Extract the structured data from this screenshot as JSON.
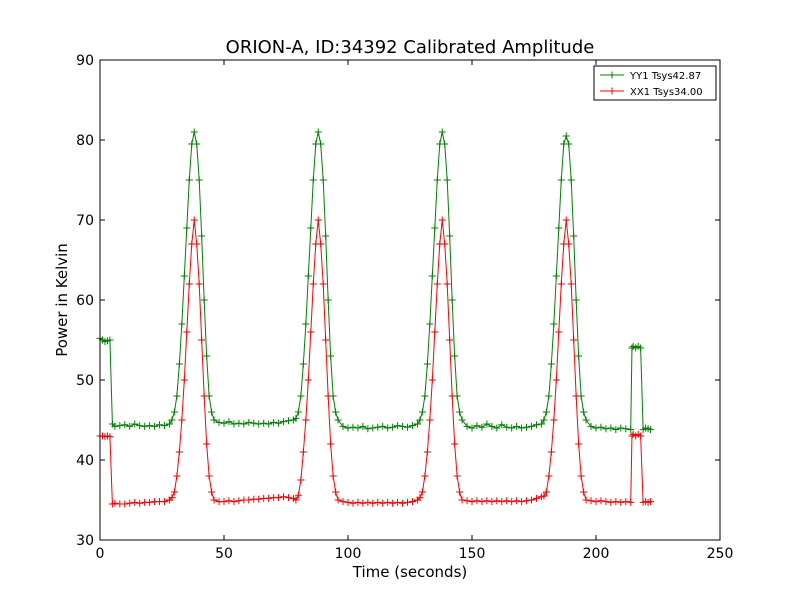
{
  "chart_data": {
    "type": "line",
    "title": "ORION-A, ID:34392 Calibrated Amplitude",
    "xlabel": "Time (seconds)",
    "ylabel": "Power in Kelvin",
    "xlim": [
      0,
      250
    ],
    "ylim": [
      30,
      90
    ],
    "xticks": [
      0,
      50,
      100,
      150,
      200,
      250
    ],
    "yticks": [
      30,
      40,
      50,
      60,
      70,
      80,
      90
    ],
    "grid": false,
    "legend_position": "top-right",
    "series": [
      {
        "name": "YY1 Tsys42.87",
        "color": "#008000",
        "marker": "+",
        "x": [
          0,
          1,
          2,
          3,
          4,
          5,
          6,
          8,
          10,
          12,
          14,
          16,
          18,
          20,
          22,
          24,
          26,
          28,
          29,
          30,
          31,
          32,
          33,
          34,
          35,
          36,
          37,
          38,
          39,
          40,
          41,
          42,
          43,
          44,
          45,
          46,
          48,
          50,
          52,
          54,
          56,
          58,
          60,
          62,
          64,
          66,
          68,
          70,
          72,
          74,
          76,
          78,
          79,
          80,
          81,
          82,
          83,
          84,
          85,
          86,
          87,
          88,
          89,
          90,
          91,
          92,
          93,
          94,
          95,
          96,
          98,
          100,
          102,
          104,
          106,
          108,
          110,
          112,
          114,
          116,
          118,
          120,
          122,
          124,
          126,
          128,
          129,
          130,
          131,
          132,
          133,
          134,
          135,
          136,
          137,
          138,
          139,
          140,
          141,
          142,
          143,
          144,
          145,
          146,
          148,
          150,
          152,
          154,
          156,
          158,
          160,
          162,
          164,
          166,
          168,
          170,
          172,
          174,
          176,
          178,
          179,
          180,
          181,
          182,
          183,
          184,
          185,
          186,
          187,
          188,
          189,
          190,
          191,
          192,
          193,
          194,
          195,
          196,
          198,
          200,
          202,
          204,
          206,
          208,
          210,
          212,
          214,
          214.5,
          215,
          216,
          217,
          218,
          219,
          220,
          221,
          222
        ],
        "y": [
          55.2,
          55.0,
          54.8,
          54.9,
          55.0,
          44.5,
          44.2,
          44.3,
          44.4,
          44.2,
          44.5,
          44.3,
          44.2,
          44.3,
          44.2,
          44.4,
          44.3,
          44.5,
          45.0,
          46.0,
          48.0,
          52.0,
          57.0,
          63.0,
          69.0,
          75.0,
          79.5,
          81.0,
          79.5,
          75.0,
          68.0,
          60.0,
          53.0,
          48.0,
          46.0,
          45.0,
          44.7,
          44.6,
          44.8,
          44.5,
          44.6,
          44.5,
          44.7,
          44.6,
          44.5,
          44.6,
          44.5,
          44.7,
          44.6,
          44.8,
          44.9,
          45.0,
          45.2,
          46.0,
          48.0,
          52.0,
          57.0,
          63.0,
          69.0,
          75.0,
          79.5,
          81.0,
          79.5,
          75.0,
          68.0,
          60.0,
          53.0,
          48.0,
          46.0,
          45.0,
          44.2,
          44.0,
          44.1,
          44.0,
          44.2,
          43.9,
          44.0,
          44.1,
          44.2,
          44.0,
          44.1,
          44.3,
          44.2,
          44.1,
          44.3,
          44.5,
          45.0,
          46.0,
          48.0,
          52.0,
          57.0,
          63.0,
          69.0,
          75.0,
          79.5,
          81.0,
          79.5,
          75.0,
          68.0,
          60.0,
          53.0,
          48.0,
          46.0,
          45.0,
          44.2,
          44.0,
          44.3,
          44.1,
          44.5,
          44.2,
          44.0,
          44.4,
          44.1,
          44.0,
          44.2,
          44.0,
          44.1,
          44.2,
          44.4,
          44.5,
          45.0,
          46.0,
          48.0,
          52.0,
          57.0,
          63.0,
          69.0,
          75.0,
          79.5,
          80.5,
          79.5,
          75.0,
          68.0,
          60.0,
          53.0,
          48.0,
          46.0,
          45.0,
          44.2,
          44.0,
          44.1,
          43.9,
          44.0,
          43.8,
          44.0,
          43.9,
          43.8,
          54.0,
          54.2,
          54.0,
          54.2,
          54.0,
          43.8,
          44.0,
          43.9,
          43.8
        ]
      },
      {
        "name": "XX1 Tsys34.00",
        "color": "#ff0000",
        "marker": "+",
        "x": [
          0,
          1,
          2,
          3,
          4,
          5,
          6,
          8,
          10,
          12,
          14,
          16,
          18,
          20,
          22,
          24,
          26,
          28,
          29,
          30,
          31,
          32,
          33,
          34,
          35,
          36,
          37,
          38,
          39,
          40,
          41,
          42,
          43,
          44,
          45,
          46,
          48,
          50,
          52,
          54,
          56,
          58,
          60,
          62,
          64,
          66,
          68,
          70,
          72,
          74,
          76,
          78,
          79,
          80,
          81,
          82,
          83,
          84,
          85,
          86,
          87,
          88,
          89,
          90,
          91,
          92,
          93,
          94,
          95,
          96,
          98,
          100,
          102,
          104,
          106,
          108,
          110,
          112,
          114,
          116,
          118,
          120,
          122,
          124,
          126,
          128,
          129,
          130,
          131,
          132,
          133,
          134,
          135,
          136,
          137,
          138,
          139,
          140,
          141,
          142,
          143,
          144,
          145,
          146,
          148,
          150,
          152,
          154,
          156,
          158,
          160,
          162,
          164,
          166,
          168,
          170,
          172,
          174,
          176,
          178,
          179,
          180,
          181,
          182,
          183,
          184,
          185,
          186,
          187,
          188,
          189,
          190,
          191,
          192,
          193,
          194,
          195,
          196,
          198,
          200,
          202,
          204,
          206,
          208,
          210,
          212,
          214,
          214.5,
          215,
          216,
          217,
          218,
          219,
          220,
          221,
          222
        ],
        "y": [
          43.0,
          43.0,
          42.9,
          43.0,
          42.9,
          34.5,
          34.6,
          34.5,
          34.5,
          34.6,
          34.7,
          34.6,
          34.7,
          34.7,
          34.8,
          34.8,
          34.8,
          35.0,
          35.3,
          36.0,
          38.0,
          41.0,
          45.0,
          50.0,
          56.0,
          62.0,
          67.0,
          70.0,
          67.0,
          62.0,
          55.0,
          48.0,
          42.0,
          38.0,
          36.0,
          35.0,
          34.8,
          34.8,
          34.9,
          34.8,
          34.9,
          35.0,
          35.0,
          35.1,
          35.1,
          35.2,
          35.2,
          35.3,
          35.3,
          35.4,
          35.3,
          35.2,
          35.0,
          35.6,
          37.5,
          41.0,
          45.0,
          50.0,
          56.0,
          62.0,
          67.0,
          70.0,
          67.0,
          62.0,
          55.0,
          48.0,
          42.0,
          38.0,
          36.0,
          35.0,
          34.8,
          34.7,
          34.6,
          34.7,
          34.6,
          34.7,
          34.6,
          34.7,
          34.6,
          34.7,
          34.6,
          34.7,
          34.6,
          34.7,
          34.8,
          35.0,
          35.3,
          36.0,
          38.0,
          41.0,
          45.0,
          50.0,
          56.0,
          62.0,
          67.0,
          70.0,
          67.0,
          62.0,
          55.0,
          48.0,
          42.0,
          38.0,
          36.0,
          35.0,
          34.9,
          34.8,
          34.9,
          34.8,
          34.9,
          34.8,
          34.9,
          34.8,
          34.9,
          34.8,
          34.9,
          34.8,
          34.9,
          35.0,
          35.2,
          35.4,
          35.5,
          36.0,
          38.0,
          41.0,
          45.0,
          50.0,
          56.0,
          62.0,
          67.0,
          70.0,
          67.0,
          62.0,
          55.0,
          48.0,
          42.0,
          38.0,
          36.0,
          35.0,
          34.9,
          34.8,
          34.9,
          34.8,
          34.7,
          34.8,
          34.7,
          34.8,
          34.7,
          43.0,
          43.2,
          43.0,
          43.2,
          43.0,
          34.7,
          34.8,
          34.7,
          34.8
        ]
      }
    ]
  }
}
